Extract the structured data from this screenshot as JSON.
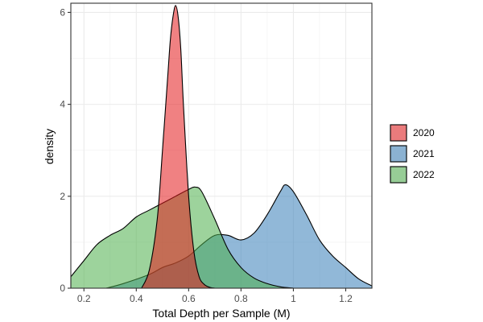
{
  "chart_data": {
    "type": "area",
    "xlabel": "Total Depth per Sample (M)",
    "ylabel": "density",
    "xlim": [
      0.15,
      1.3
    ],
    "ylim": [
      0,
      6.2
    ],
    "x_ticks": [
      0.2,
      0.4,
      0.6,
      0.8,
      1.0,
      1.2
    ],
    "x_tick_labels": [
      "0.2",
      "0.4",
      "0.6",
      "0.8",
      "1",
      "1.2"
    ],
    "y_ticks": [
      0,
      2,
      4,
      6
    ],
    "y_tick_labels": [
      "0",
      "2",
      "4",
      "6"
    ],
    "grid": true,
    "legend_position": "right",
    "series": [
      {
        "name": "2021",
        "color": "#377EB8",
        "x": [
          0.285,
          0.35,
          0.45,
          0.5,
          0.55,
          0.6,
          0.65,
          0.7,
          0.75,
          0.8,
          0.85,
          0.9,
          0.95,
          0.97,
          1.0,
          1.05,
          1.1,
          1.15,
          1.2,
          1.25,
          1.3
        ],
        "y": [
          0.0,
          0.1,
          0.3,
          0.45,
          0.55,
          0.7,
          0.95,
          1.15,
          1.15,
          1.05,
          1.2,
          1.6,
          2.1,
          2.25,
          2.1,
          1.6,
          1.05,
          0.7,
          0.45,
          0.2,
          0.05
        ]
      },
      {
        "name": "2022",
        "color": "#4DAF4A",
        "x": [
          0.15,
          0.2,
          0.25,
          0.3,
          0.35,
          0.4,
          0.45,
          0.5,
          0.55,
          0.6,
          0.625,
          0.65,
          0.7,
          0.75,
          0.8,
          0.85,
          0.9,
          0.95,
          1.0
        ],
        "y": [
          0.25,
          0.6,
          0.95,
          1.15,
          1.3,
          1.55,
          1.7,
          1.85,
          2.0,
          2.15,
          2.2,
          2.1,
          1.5,
          0.85,
          0.45,
          0.22,
          0.1,
          0.03,
          0.0
        ]
      },
      {
        "name": "2020",
        "color": "#E41A1C",
        "x": [
          0.42,
          0.45,
          0.48,
          0.5,
          0.52,
          0.53,
          0.54,
          0.55,
          0.56,
          0.57,
          0.58,
          0.6,
          0.62,
          0.64,
          0.66,
          0.68,
          0.7
        ],
        "y": [
          0.0,
          0.4,
          1.5,
          3.0,
          4.6,
          5.4,
          5.9,
          6.15,
          5.9,
          5.2,
          4.0,
          2.0,
          0.8,
          0.25,
          0.08,
          0.02,
          0.0
        ]
      }
    ],
    "legend_order": [
      "2020",
      "2021",
      "2022"
    ],
    "fill_opacity": 0.55
  }
}
